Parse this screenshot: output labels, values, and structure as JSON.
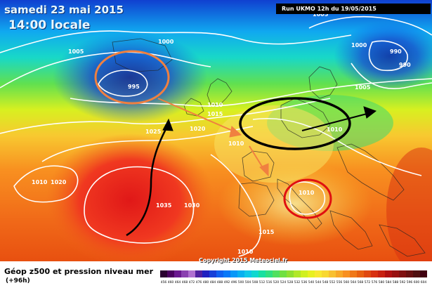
{
  "header": {
    "date": "samedi 23 mai 2015",
    "time": "14:00 locale",
    "run": "Run UKMO 12h du 19/05/2015"
  },
  "footer": {
    "title": "Géop z500 et pression niveau mer",
    "subtitle": "(+96h)",
    "copyright": "Copyright 2015 Meteociel.fr"
  },
  "isobar_labels": [
    "1005",
    "1000",
    "1005",
    "1000",
    "990",
    "990",
    "1005",
    "995",
    "1010",
    "1015",
    "1025",
    "1020",
    "1010",
    "1020",
    "1010",
    "1035",
    "1030",
    "1015",
    "1010",
    "1010",
    "1010"
  ],
  "colorbar": {
    "values": [
      "456",
      "460",
      "464",
      "468",
      "472",
      "476",
      "480",
      "484",
      "488",
      "492",
      "496",
      "500",
      "504",
      "508",
      "512",
      "516",
      "520",
      "524",
      "528",
      "532",
      "536",
      "540",
      "544",
      "548",
      "552",
      "556",
      "560",
      "564",
      "568",
      "572",
      "576",
      "580",
      "584",
      "588",
      "592",
      "596",
      "600",
      "604"
    ],
    "colors": [
      "#2a0030",
      "#4a0060",
      "#6a1890",
      "#8a40b0",
      "#b070d0",
      "#5020a0",
      "#2020c0",
      "#1840d8",
      "#1060f0",
      "#0878f8",
      "#0898f8",
      "#08b0f0",
      "#10c8e8",
      "#10d8d0",
      "#18e0a0",
      "#30e080",
      "#50e060",
      "#70e040",
      "#90e030",
      "#b0e828",
      "#d0f020",
      "#e8f020",
      "#f8e830",
      "#f8d830",
      "#f8c030",
      "#f8a828",
      "#f89020",
      "#f07818",
      "#e86010",
      "#e04810",
      "#d83010",
      "#c82010",
      "#b01010",
      "#981010",
      "#801010",
      "#681010",
      "#501010",
      "#400010"
    ]
  },
  "annotations": {
    "arrow_color": "#f08040",
    "circle_low_color": "#f08040",
    "circle_black_color": "#000000",
    "circle_red_color": "#e01010",
    "arrow_black_color": "#000000"
  }
}
